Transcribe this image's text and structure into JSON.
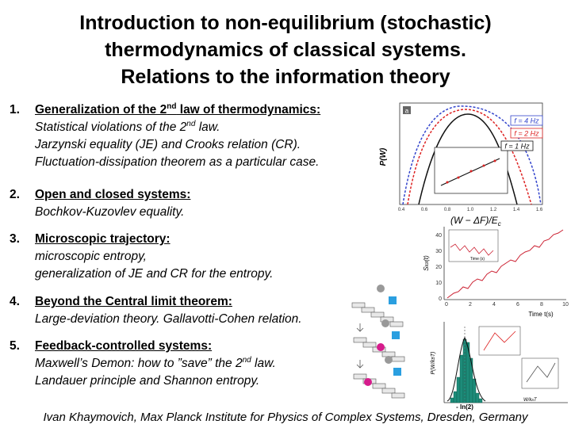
{
  "title": {
    "line1": "Introduction to non-equilibrium (stochastic)",
    "line2": "thermodynamics of classical systems.",
    "line3": "Relations to the information theory"
  },
  "items": [
    {
      "number": "1.",
      "heading_a": "Generalization of the 2",
      "heading_sup": "nd",
      "heading_b": " law of thermodynamics:",
      "line1_a": "Statistical violations of the 2",
      "line1_sup": "nd",
      "line1_b": " law.",
      "line2": "Jarzynski equality (JE) and Crooks relation (CR).",
      "line3": "Fluctuation-dissipation theorem as a particular case."
    },
    {
      "number": "2.",
      "heading": "Open and closed systems:",
      "line1": "Bochkov-Kuzovlev equality."
    },
    {
      "number": "3.",
      "heading": "Microscopic trajectory:",
      "line1": "microscopic entropy,",
      "line2": "generalization of JE and CR for the entropy."
    },
    {
      "number": "4.",
      "heading": "Beyond the Central limit theorem:",
      "line1": "Large-deviation theory. Gallavotti-Cohen relation."
    },
    {
      "number": "5.",
      "heading": "Feedback-controlled systems:",
      "line1_a": "Maxwell’s Demon: how to ”save” the 2",
      "line1_sup": "nd",
      "line1_b": "  law.",
      "line2": "Landauer principle and Shannon entropy."
    }
  ],
  "figure1": {
    "panel_label": "a",
    "legend": [
      "f = 4 Hz",
      "f = 2 Hz",
      "f = 1 Hz"
    ],
    "ylabel": "P(W)",
    "xlabel": "(W − ΔF)/E",
    "xlabel_sub": "c",
    "xticks": [
      "0.4",
      "0.6",
      "0.8",
      "1.0",
      "1.2",
      "1.4",
      "1.6"
    ],
    "colors": {
      "f4": "#3344cc",
      "f2": "#dd2222",
      "f1": "#111111"
    }
  },
  "figure2": {
    "xlabel": "Time t(s)",
    "xticks": [
      "0",
      "2",
      "4",
      "6",
      "8",
      "10"
    ],
    "yticks": [
      "40",
      "30",
      "20",
      "10",
      "0"
    ],
    "ylabel": "S",
    "ylabel_sub": "tot",
    "ylabel_tail": "(t)",
    "inset_xlabel": "Time (s)",
    "color": "#cc2233"
  },
  "figure3": {
    "xlabel_bottom": "- ln(2)",
    "xlabel_right": "W/k",
    "xlabel_right_sub": "B",
    "xlabel_right_tail": "T",
    "ylabel": "P(W/k",
    "ylabel_sub": "B",
    "ylabel_tail": "T)",
    "color": "#117766"
  },
  "footer": "Ivan Khaymovich, Max Planck Institute for Physics of Complex Systems, Dresden, Germany"
}
